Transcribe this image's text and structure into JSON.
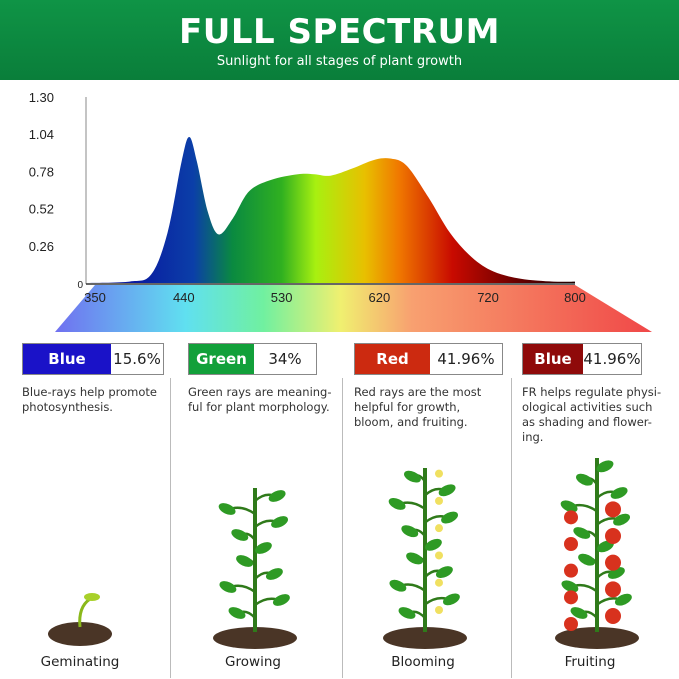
{
  "header": {
    "title": "FULL SPECTRUM",
    "subtitle": "Sunlight for all stages of plant growth"
  },
  "chart_data": {
    "type": "area",
    "x": [
      350,
      390,
      410,
      425,
      438,
      445,
      452,
      462,
      472,
      485,
      500,
      520,
      545,
      560,
      575,
      595,
      615,
      630,
      645,
      665,
      685,
      705,
      725,
      750,
      780,
      800
    ],
    "y": [
      0,
      0.01,
      0.06,
      0.35,
      0.85,
      1.02,
      0.85,
      0.5,
      0.34,
      0.45,
      0.64,
      0.72,
      0.76,
      0.76,
      0.75,
      0.8,
      0.86,
      0.87,
      0.82,
      0.6,
      0.35,
      0.18,
      0.08,
      0.03,
      0.01,
      0.01
    ],
    "xticks": [
      "350",
      "440",
      "530",
      "620",
      "720",
      "800"
    ],
    "yticks": [
      "0",
      "0.26",
      "0.52",
      "0.78",
      "1.04",
      "1.30"
    ],
    "xlim": [
      350,
      800
    ],
    "ylim": [
      0,
      1.3
    ],
    "grid": false
  },
  "bands": [
    {
      "label": "Blue",
      "value": "15.6%",
      "color": "#1a12c8",
      "desc": "Blue-rays help promote photosynthesis."
    },
    {
      "label": "Green",
      "value": "34%",
      "color": "#12a03a",
      "desc": "Green rays are meaning-ful for plant morphology."
    },
    {
      "label": "Red",
      "value": "41.96%",
      "color": "#cc2a10",
      "desc": "Red rays are the most helpful for growth, bloom, and fruiting."
    },
    {
      "label": "Blue",
      "value": "41.96%",
      "color": "#8f0a0a",
      "desc": "FR helps regulate physi-ological activities such as shading and flower-ing."
    }
  ],
  "stages": [
    "Geminating",
    "Growing",
    "Blooming",
    "Fruiting"
  ]
}
